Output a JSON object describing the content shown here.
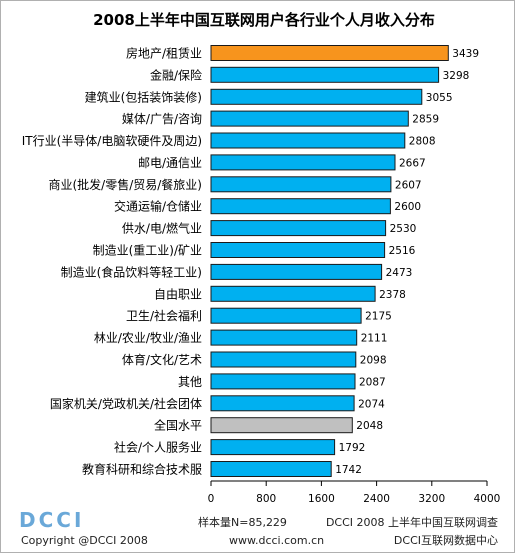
{
  "chart_data": {
    "type": "bar",
    "orientation": "horizontal",
    "title": "2008上半年中国互联网用户各行业个人月收入分布",
    "categories": [
      "房地产/租赁业",
      "金融/保险",
      "建筑业(包括装饰装修)",
      "媒体/广告/咨询",
      "IT行业(半导体/电脑软硬件及周边)",
      "邮电/通信业",
      "商业(批发/零售/贸易/餐旅业)",
      "交通运输/仓储业",
      "供水/电/燃气业",
      "制造业(重工业)/矿业",
      "制造业(食品饮料等轻工业)",
      "自由职业",
      "卫生/社会福利",
      "林业/农业/牧业/渔业",
      "体育/文化/艺术",
      "其他",
      "国家机关/党政机关/社会团体",
      "全国水平",
      "社会/个人服务业",
      "教育科研和综合技术服"
    ],
    "values": [
      3439,
      3298,
      3055,
      2859,
      2808,
      2667,
      2607,
      2600,
      2530,
      2516,
      2473,
      2378,
      2175,
      2111,
      2098,
      2087,
      2074,
      2048,
      1792,
      1742
    ],
    "xlim": [
      0,
      4000
    ],
    "xticks": [
      0,
      800,
      1600,
      2400,
      3200,
      4000
    ],
    "grid": false,
    "legend": "none",
    "colors": {
      "default": "#00b0f0",
      "highlight_top": "#f7941d",
      "highlight_national": "#c0c0c0",
      "outline": "#1a1a1a"
    },
    "highlight": {
      "0": "highlight_top",
      "17": "highlight_national"
    }
  },
  "footer": {
    "sample": "样本量N=85,229",
    "survey": "DCCI 2008 上半年中国互联网调查",
    "url": "www.dcci.com.cn",
    "org": "DCCI互联网数据中心",
    "copyright": "Copyright @DCCI 2008",
    "logo_text": "DCCI"
  }
}
